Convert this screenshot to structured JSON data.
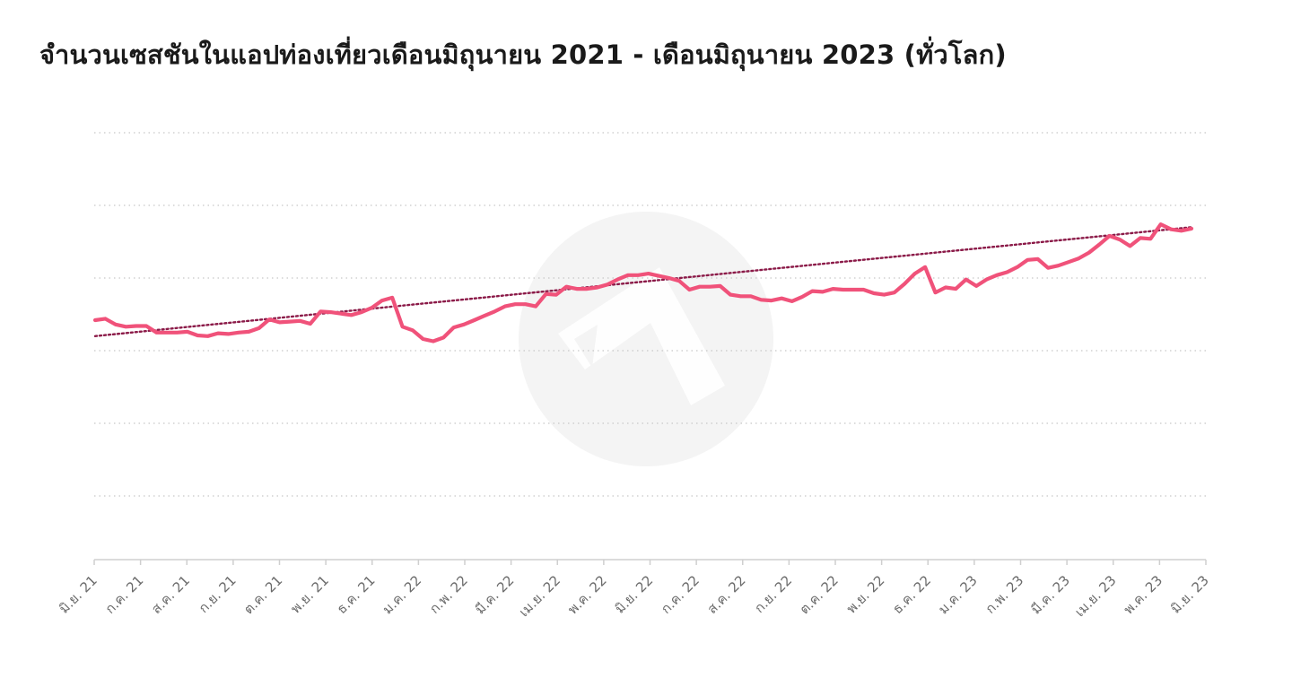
{
  "title": "จำนวนเซสชันในแอปท่องเที่ยวเดือนมิถุนายน 2021 - เดือนมิถุนายน 2023 (ทั่วโลก)",
  "colors": {
    "series": "#f0527a",
    "trend": "#8b1a48",
    "grid": "#c8c8c8",
    "axis": "#cfcfcf",
    "watermark": "#f4f4f4"
  },
  "chart_data": {
    "type": "line",
    "title": "จำนวนเซสชันในแอปท่องเที่ยวเดือนมิถุนายน 2021 - เดือนมิถุนายน 2023 (ทั่วโลก)",
    "xlabel": "",
    "ylabel": "",
    "x_tick_labels": [
      "มิ.ย. 21",
      "ก.ค. 21",
      "ส.ค. 21",
      "ก.ย. 21",
      "ต.ค. 21",
      "พ.ย. 21",
      "ธ.ค. 21",
      "ม.ค. 22",
      "ก.พ. 22",
      "มี.ค. 22",
      "เม.ย. 22",
      "พ.ค. 22",
      "มิ.ย. 22",
      "ก.ค. 22",
      "ส.ค. 22",
      "ก.ย. 22",
      "ต.ค. 22",
      "พ.ย. 22",
      "ธ.ค. 22",
      "ม.ค. 23",
      "ก.พ. 23",
      "มี.ค. 23",
      "เม.ย. 23",
      "พ.ค. 23",
      "มิ.ย. 23"
    ],
    "y_tick_labels_shown": false,
    "ylim": [
      0,
      6
    ],
    "grid": true,
    "series": [
      {
        "values": [
          3.42,
          3.44,
          3.36,
          3.33,
          3.34,
          3.34,
          3.25,
          3.25,
          3.25,
          3.26,
          3.21,
          3.2,
          3.24,
          3.23,
          3.25,
          3.26,
          3.31,
          3.43,
          3.39,
          3.4,
          3.41,
          3.37,
          3.54,
          3.53,
          3.51,
          3.49,
          3.53,
          3.59,
          3.69,
          3.73,
          3.33,
          3.28,
          3.16,
          3.13,
          3.18,
          3.32,
          3.36,
          3.42,
          3.48,
          3.54,
          3.61,
          3.64,
          3.64,
          3.61,
          3.78,
          3.77,
          3.88,
          3.85,
          3.85,
          3.87,
          3.91,
          3.98,
          4.04,
          4.04,
          4.06,
          4.03,
          4.0,
          3.96,
          3.84,
          3.88,
          3.88,
          3.89,
          3.77,
          3.75,
          3.75,
          3.7,
          3.69,
          3.72,
          3.68,
          3.74,
          3.82,
          3.81,
          3.85,
          3.84,
          3.84,
          3.84,
          3.79,
          3.77,
          3.8,
          3.92,
          4.06,
          4.15,
          3.8,
          3.87,
          3.85,
          3.98,
          3.89,
          3.98,
          4.04,
          4.08,
          4.15,
          4.25,
          4.26,
          4.14,
          4.17,
          4.22,
          4.27,
          4.35,
          4.46,
          4.58,
          4.53,
          4.44,
          4.55,
          4.54,
          4.74,
          4.67,
          4.65,
          4.68
        ]
      }
    ],
    "trendline": {
      "start": 3.2,
      "end": 4.7
    }
  }
}
